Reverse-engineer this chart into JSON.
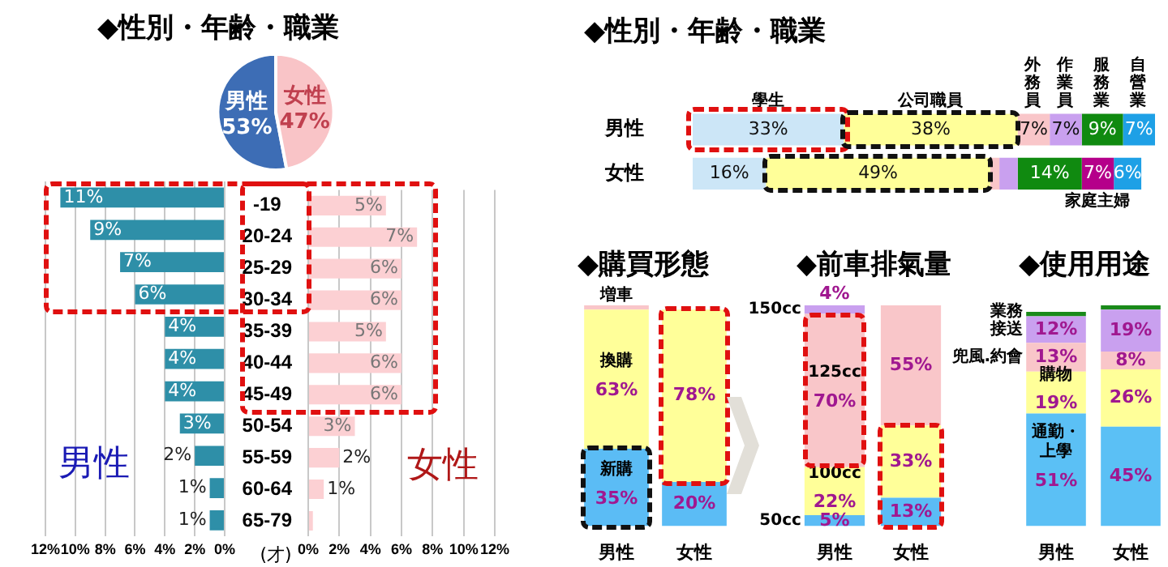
{
  "chart_data": [
    {
      "type": "pie",
      "title": "◆性別・年齢・職業",
      "categories": [
        "男性",
        "女性"
      ],
      "values": [
        53,
        47
      ],
      "colors": [
        "#3d6db5",
        "#f9c4c7"
      ],
      "value_labels": [
        "53%",
        "47%"
      ]
    },
    {
      "type": "bar",
      "orientation": "horizontal",
      "categories": [
        null,
        null,
        null,
        null,
        null,
        null,
        null,
        null,
        null,
        null,
        null
      ],
      "series": [
        {
          "name": "男性",
          "color": "#2e8fa8",
          "values": [
            11,
            9,
            7,
            6,
            4,
            4,
            4,
            3,
            2,
            1,
            1
          ],
          "value_labels": [
            "11%",
            "9%",
            "7%",
            "6%",
            "4%",
            "4%",
            "4%",
            "3%",
            "2%",
            "1%",
            "1%"
          ]
        }
      ],
      "xlim": [
        12,
        0
      ],
      "xticks": [
        {
          "value": 12,
          "label": "12%"
        },
        {
          "value": 10,
          "label": "10%"
        },
        {
          "value": 8,
          "label": "8%"
        },
        {
          "value": 6,
          "label": "6%"
        },
        {
          "value": 4,
          "label": "4%"
        },
        {
          "value": 2,
          "label": "2%"
        },
        {
          "value": 0,
          "label": "0%"
        }
      ],
      "grid": "x",
      "tick_labels": "x"
    },
    {
      "type": "bar",
      "orientation": "horizontal",
      "categories": [
        "-19",
        "20-24",
        "25-29",
        "30-34",
        "35-39",
        "40-44",
        "45-49",
        "50-54",
        "55-59",
        "60-64",
        "65-79"
      ],
      "series": [
        {
          "name": "女性",
          "color": "#fcd0d3",
          "values": [
            5,
            7,
            6,
            6,
            5,
            6,
            6,
            3,
            2,
            1,
            0.3
          ],
          "value_labels": [
            "5%",
            "7%",
            "6%",
            "6%",
            "5%",
            "6%",
            "6%",
            "3%",
            "2%",
            "1%",
            null
          ]
        }
      ],
      "xlim": [
        0,
        12
      ],
      "xticks": [
        {
          "value": 0,
          "label": "0%"
        },
        {
          "value": 2,
          "label": "2%"
        },
        {
          "value": 4,
          "label": "4%"
        },
        {
          "value": 6,
          "label": "6%"
        },
        {
          "value": 8,
          "label": "8%"
        },
        {
          "value": 10,
          "label": "10%"
        },
        {
          "value": 12,
          "label": "12%"
        }
      ],
      "grid": "x",
      "annotations": [
        "(才)"
      ]
    },
    {
      "type": "bar",
      "orientation": "horizontal",
      "stacked": true,
      "title": "◆性別・年齢・職業",
      "categories": [
        "男性",
        "女性"
      ],
      "series": [
        {
          "name": "學生",
          "color": "#cce6f7",
          "values": [
            33,
            16
          ],
          "value_labels": [
            "33%",
            "16%"
          ]
        },
        {
          "name": "公司職員",
          "color": "#ffff99",
          "values": [
            38,
            49
          ],
          "value_labels": [
            "38%",
            "49%"
          ]
        },
        {
          "name": "外務員",
          "color": "#f9c6c9",
          "values": [
            7,
            2
          ],
          "value_labels": [
            "7%",
            null
          ]
        },
        {
          "name": "作業員",
          "color": "#c9a0ef",
          "values": [
            7,
            4
          ],
          "value_labels": [
            "7%",
            null
          ]
        },
        {
          "name": "服務業",
          "color": "#108a10",
          "values": [
            9,
            14
          ],
          "value_labels": [
            "9%",
            "14%"
          ]
        },
        {
          "name": "家庭主婦",
          "color": "#b5008a",
          "values": [
            null,
            7
          ],
          "value_labels": [
            null,
            "7%"
          ]
        },
        {
          "name": "自營業",
          "color": "#1ea0e6",
          "values": [
            7,
            6
          ],
          "value_labels": [
            "7%",
            "6%"
          ]
        }
      ]
    },
    {
      "type": "bar",
      "stacked": true,
      "title": "◆購買形態",
      "categories": [
        "男性",
        "女性"
      ],
      "series": [
        {
          "name": "新購",
          "color": "#5bbcf5",
          "values": [
            35,
            20
          ],
          "value_labels": [
            "35%",
            "20%"
          ]
        },
        {
          "name": "換購",
          "color": "#ffff99",
          "values": [
            63,
            78
          ],
          "value_labels": [
            "63%",
            "78%"
          ]
        },
        {
          "name": "増車",
          "color": "#f9c6c9",
          "values": [
            2,
            null
          ],
          "value_labels": [
            null,
            null
          ]
        }
      ]
    },
    {
      "type": "bar",
      "stacked": true,
      "title": "◆前車排氣量",
      "categories": [
        "男性",
        "女性"
      ],
      "series": [
        {
          "name": "50cc",
          "color": "#5bbcf5",
          "values": [
            5,
            13
          ],
          "value_labels": [
            "5%",
            "13%"
          ]
        },
        {
          "name": "100cc",
          "color": "#ffff99",
          "values": [
            22,
            33
          ],
          "value_labels": [
            "22%",
            "33%"
          ]
        },
        {
          "name": "125cc",
          "color": "#f9c6c9",
          "values": [
            70,
            55
          ],
          "value_labels": [
            "70%",
            "55%"
          ]
        },
        {
          "name": "150cc",
          "color": "#c9a0ef",
          "values": [
            4,
            null
          ],
          "value_labels": [
            "4%",
            null
          ]
        }
      ]
    },
    {
      "type": "bar",
      "stacked": true,
      "title": "◆使用用途",
      "categories": [
        "男性",
        "女性"
      ],
      "series": [
        {
          "name": "通勤・上學",
          "color": "#5bc0f5",
          "values": [
            51,
            45
          ],
          "value_labels": [
            "51%",
            "45%"
          ]
        },
        {
          "name": "購物",
          "color": "#ffff99",
          "values": [
            19,
            26
          ],
          "value_labels": [
            "19%",
            "26%"
          ]
        },
        {
          "name": "兜風.約會",
          "color": "#f9c6c9",
          "values": [
            13,
            8
          ],
          "value_labels": [
            "13%",
            "8%"
          ]
        },
        {
          "name": "接送",
          "color": "#c9a0ef",
          "values": [
            12,
            19
          ],
          "value_labels": [
            "12%",
            "19%"
          ]
        },
        {
          "name": "業務",
          "color": "#1a8a1a",
          "values": [
            2,
            2
          ],
          "value_labels": [
            null,
            null
          ]
        }
      ]
    }
  ]
}
